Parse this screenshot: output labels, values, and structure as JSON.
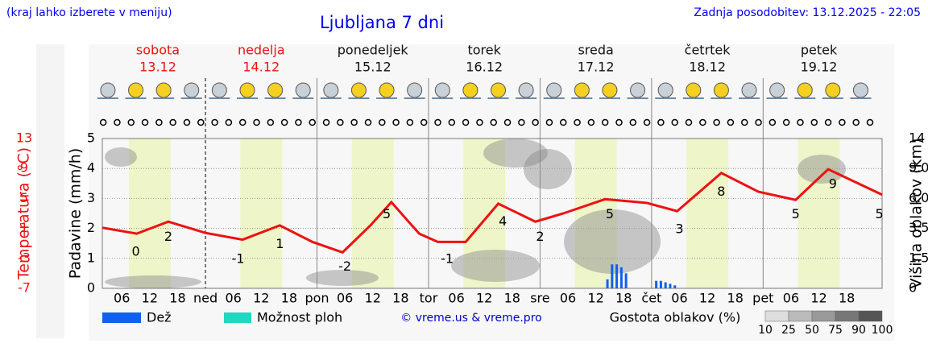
{
  "header": {
    "note": "(kraj lahko izberete v meniju)",
    "title": "Ljubljana 7 dni",
    "updated": "Zadnja posodobitev: 13.12.2025 - 22:05"
  },
  "days": [
    {
      "name": "sobota",
      "date": "13.12",
      "weekend": true
    },
    {
      "name": "nedelja",
      "date": "14.12",
      "weekend": true
    },
    {
      "name": "ponedeljek",
      "date": "15.12",
      "weekend": false
    },
    {
      "name": "torek",
      "date": "16.12",
      "weekend": false
    },
    {
      "name": "sreda",
      "date": "17.12",
      "weekend": false
    },
    {
      "name": "četrtek",
      "date": "18.12",
      "weekend": false
    },
    {
      "name": "petek",
      "date": "19.12",
      "weekend": false
    }
  ],
  "chart_data": {
    "type": "meteogram",
    "xlim": [
      1.8,
      169.6
    ],
    "xticks": [
      {
        "value": 6,
        "label": "06"
      },
      {
        "value": 12,
        "label": "12"
      },
      {
        "value": 18,
        "label": "18"
      },
      {
        "value": 24,
        "label": "ned"
      },
      {
        "value": 30,
        "label": "06"
      },
      {
        "value": 36,
        "label": "12"
      },
      {
        "value": 42,
        "label": "18"
      },
      {
        "value": 48,
        "label": "pon"
      },
      {
        "value": 54,
        "label": "06"
      },
      {
        "value": 60,
        "label": "12"
      },
      {
        "value": 66,
        "label": "18"
      },
      {
        "value": 72,
        "label": "tor"
      },
      {
        "value": 78,
        "label": "06"
      },
      {
        "value": 84,
        "label": "12"
      },
      {
        "value": 90,
        "label": "18"
      },
      {
        "value": 96,
        "label": "sre"
      },
      {
        "value": 102,
        "label": "06"
      },
      {
        "value": 108,
        "label": "12"
      },
      {
        "value": 114,
        "label": "18"
      },
      {
        "value": 120,
        "label": "čet"
      },
      {
        "value": 126,
        "label": "06"
      },
      {
        "value": 132,
        "label": "12"
      },
      {
        "value": 138,
        "label": "18"
      },
      {
        "value": 144,
        "label": "pet"
      },
      {
        "value": 150,
        "label": "06"
      },
      {
        "value": 156,
        "label": "12"
      },
      {
        "value": 162,
        "label": "18"
      }
    ],
    "temp_axis_label": "Temperatura (°C)",
    "precip_axis_label": "Padavine (mm/h)",
    "cloud_axis_label": "Višina oblakov (km)",
    "temp_lim": [
      -7,
      13
    ],
    "temp_ticks": [
      13,
      9,
      5,
      1,
      -3,
      -7
    ],
    "ylim": [
      0,
      5
    ],
    "yticks": [
      0,
      1,
      2,
      3,
      4,
      5
    ],
    "y2ticks": [
      0,
      {
        "value": 1.5,
        "label": "1.5"
      },
      {
        "value": 3.5,
        "label": "3.5"
      },
      {
        "value": 6.0,
        "label": "6.0"
      },
      {
        "value": 9.0,
        "label": "9.0"
      },
      14
    ],
    "temperature": {
      "name": "Temperatura",
      "color": "#ee1111",
      "x": [
        1.8,
        9.2,
        16,
        24,
        32,
        40,
        47,
        53.5,
        59.5,
        64,
        70,
        74,
        80,
        87,
        95,
        101,
        110,
        119,
        125.5,
        135,
        143,
        151,
        158,
        169.6
      ],
      "values": [
        1.1,
        0.3,
        1.9,
        0.4,
        -0.5,
        1.4,
        -0.8,
        -2.2,
        1.4,
        4.5,
        0.3,
        -0.8,
        -0.8,
        4.3,
        1.9,
        3,
        4.9,
        4.4,
        3.3,
        8.4,
        5.9,
        4.8,
        8.9,
        5.5
      ]
    },
    "temp_labels": {
      "x": [
        9,
        16,
        31,
        40,
        54,
        63,
        76,
        88,
        96,
        111,
        126,
        135,
        151,
        159,
        169
      ],
      "values": [
        0,
        2,
        -1,
        1,
        -2,
        5,
        -1,
        4,
        2,
        5,
        3,
        8,
        5,
        9,
        5
      ]
    },
    "precipitation": {
      "name": "Dež",
      "color": "#1060f0",
      "x": [
        110.5,
        111.5,
        112.5,
        113.5,
        114.5,
        121,
        122,
        123,
        124,
        125
      ],
      "values": [
        0.3,
        0.8,
        0.8,
        0.7,
        0.5,
        0.25,
        0.25,
        0.2,
        0.15,
        0.1
      ]
    },
    "showers": {
      "name": "Možnost ploh",
      "color": "#20d8c0"
    },
    "copyright": "© vreme.us & vreme.pro",
    "cloud_legend": {
      "title": "Gostota oblakov (%)",
      "levels": [
        10,
        25,
        50,
        75,
        90,
        100
      ],
      "colors": [
        "#dddddd",
        "#bbbbbb",
        "#999999",
        "#777777",
        "#555555"
      ]
    }
  }
}
